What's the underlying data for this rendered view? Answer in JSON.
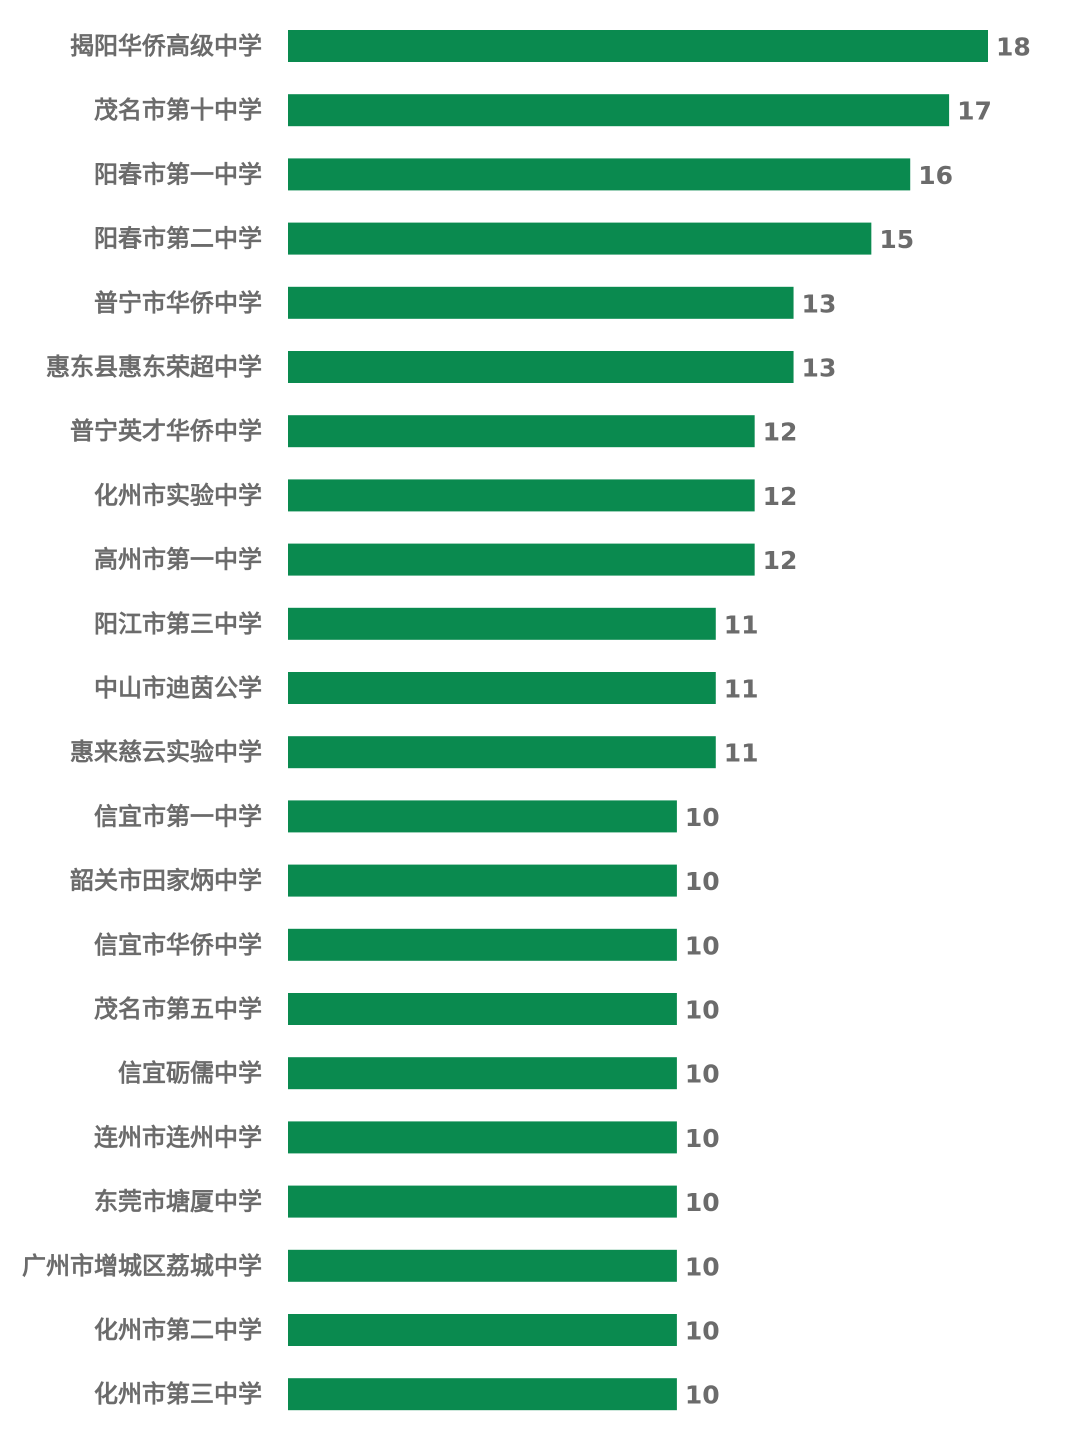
{
  "chart_data": {
    "type": "bar",
    "orientation": "horizontal",
    "title": "",
    "xlabel": "",
    "ylabel": "",
    "xlim": [
      0,
      18
    ],
    "grid": false,
    "legend": "none",
    "bar_color": "#0a8a4f",
    "label_color": "#6b6b6b",
    "categories": [
      "揭阳华侨高级中学",
      "茂名市第十中学",
      "阳春市第一中学",
      "阳春市第二中学",
      "普宁市华侨中学",
      "惠东县惠东荣超中学",
      "普宁英才华侨中学",
      "化州市实验中学",
      "高州市第一中学",
      "阳江市第三中学",
      "中山市迪茵公学",
      "惠来慈云实验中学",
      "信宜市第一中学",
      "韶关市田家炳中学",
      "信宜市华侨中学",
      "茂名市第五中学",
      "信宜砺儒中学",
      "连州市连州中学",
      "东莞市塘厦中学",
      "广州市增城区荔城中学",
      "化州市第二中学",
      "化州市第三中学"
    ],
    "values": [
      18,
      17,
      16,
      15,
      13,
      13,
      12,
      12,
      12,
      11,
      11,
      11,
      10,
      10,
      10,
      10,
      10,
      10,
      10,
      10,
      10,
      10
    ]
  }
}
